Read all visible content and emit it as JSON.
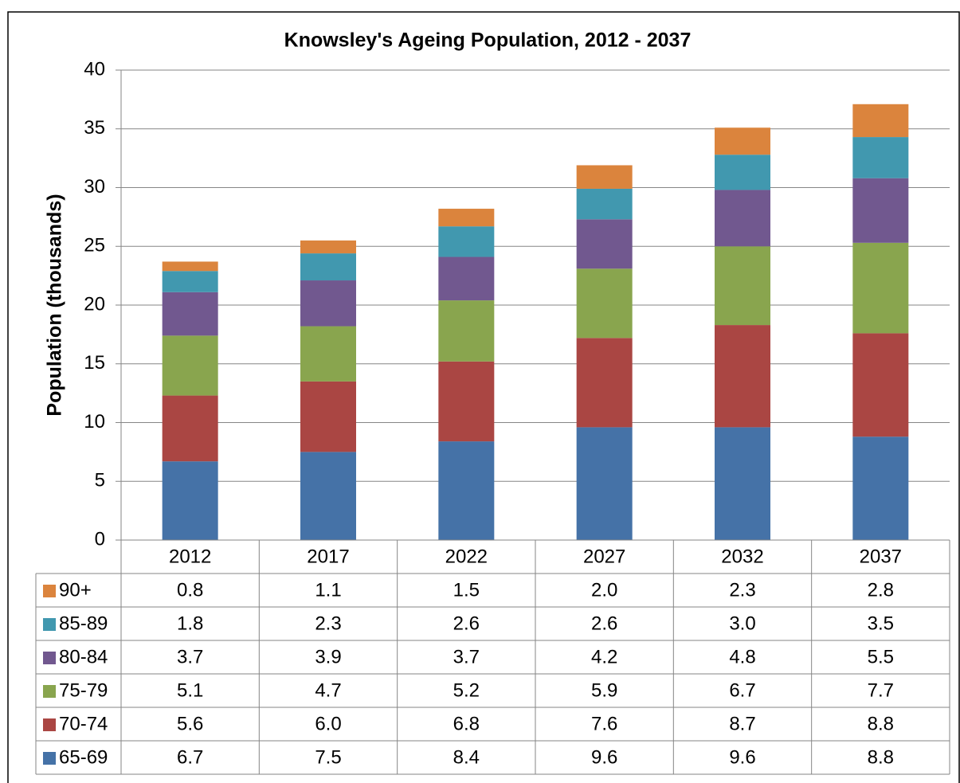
{
  "chart_data": {
    "type": "stacked_bar",
    "title": "Knowsley's Ageing Population, 2012 - 2037",
    "y_label": "Population (thousands)",
    "categories": [
      "2012",
      "2017",
      "2022",
      "2027",
      "2032",
      "2037"
    ],
    "series": [
      {
        "name": "65-69",
        "color": "#4572a7",
        "values": [
          6.7,
          7.5,
          8.4,
          9.6,
          9.6,
          8.8
        ],
        "value_labels": [
          "6.7",
          "7.5",
          "8.4",
          "9.6",
          "9.6",
          "8.8"
        ]
      },
      {
        "name": "70-74",
        "color": "#aa4643",
        "values": [
          5.6,
          6.0,
          6.8,
          7.6,
          8.7,
          8.8
        ],
        "value_labels": [
          "5.6",
          "6.0",
          "6.8",
          "7.6",
          "8.7",
          "8.8"
        ]
      },
      {
        "name": "75-79",
        "color": "#89a54e",
        "values": [
          5.1,
          4.7,
          5.2,
          5.9,
          6.7,
          7.7
        ],
        "value_labels": [
          "5.1",
          "4.7",
          "5.2",
          "5.9",
          "6.7",
          "7.7"
        ]
      },
      {
        "name": "80-84",
        "color": "#71588f",
        "values": [
          3.7,
          3.9,
          3.7,
          4.2,
          4.8,
          5.5
        ],
        "value_labels": [
          "3.7",
          "3.9",
          "3.7",
          "4.2",
          "4.8",
          "5.5"
        ]
      },
      {
        "name": "85-89",
        "color": "#4198af",
        "values": [
          1.8,
          2.3,
          2.6,
          2.6,
          3.0,
          3.5
        ],
        "value_labels": [
          "1.8",
          "2.3",
          "2.6",
          "2.6",
          "3.0",
          "3.5"
        ]
      },
      {
        "name": "90+",
        "color": "#db843d",
        "values": [
          0.8,
          1.1,
          1.5,
          2.0,
          2.3,
          2.8
        ],
        "value_labels": [
          "0.8",
          "1.1",
          "1.5",
          "2.0",
          "2.3",
          "2.8"
        ]
      }
    ],
    "ylim": [
      0,
      40
    ],
    "yticks": [
      0,
      5,
      10,
      15,
      20,
      25,
      30,
      35,
      40
    ],
    "grid": true,
    "legend": "table"
  }
}
